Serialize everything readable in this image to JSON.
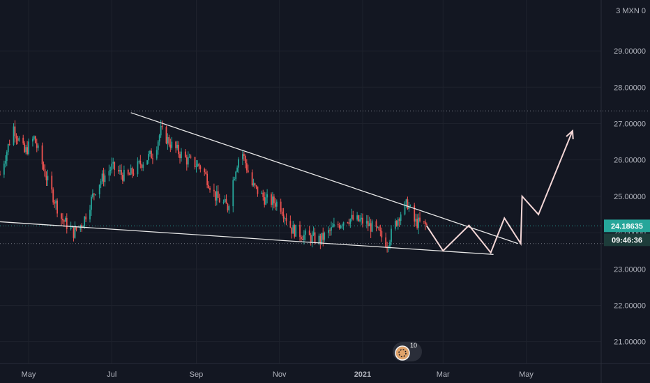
{
  "header": {
    "currency_label": "3 MXN 0"
  },
  "price_badge": {
    "value": "24.18635",
    "color": "#26a69a"
  },
  "countdown_badge": {
    "value": "09:46:36"
  },
  "logo": {
    "text": "10",
    "icon": "tv-logo-icon"
  },
  "colors": {
    "up": "#26a69a",
    "down": "#ef5350",
    "background": "#131722",
    "grid": "#1e222d",
    "trendline": "#e8e8e8",
    "projection": "#f3d6d6"
  },
  "chart_data": {
    "type": "candlestick",
    "title": "",
    "xlabel": "",
    "ylabel": "",
    "x_ticks": [
      "May",
      "Jul",
      "Sep",
      "Nov",
      "2021",
      "Mar",
      "May"
    ],
    "x_tick_dates": [
      "2020-05-01",
      "2020-07-01",
      "2020-09-01",
      "2020-11-01",
      "2021-01-01",
      "2021-03-01",
      "2021-05-01"
    ],
    "y_ticks": [
      21.0,
      22.0,
      23.0,
      24.0,
      25.0,
      26.0,
      27.0,
      28.0,
      29.0
    ],
    "y_tick_labels": [
      "21.00000",
      "22.00000",
      "23.00000",
      "24.00000",
      "25.00000",
      "26.00000",
      "27.00000",
      "28.00000",
      "29.00000"
    ],
    "ylim": [
      20.4,
      30.4
    ],
    "xlim": [
      "2020-04-10",
      "2021-06-25"
    ],
    "grid": true,
    "price_series": [
      {
        "date": "2020-04-10",
        "close": 25.6
      },
      {
        "date": "2020-04-20",
        "close": 26.9
      },
      {
        "date": "2020-04-28",
        "close": 26.2
      },
      {
        "date": "2020-05-05",
        "close": 26.6
      },
      {
        "date": "2020-05-15",
        "close": 25.4
      },
      {
        "date": "2020-05-25",
        "close": 24.4
      },
      {
        "date": "2020-06-03",
        "close": 24.0
      },
      {
        "date": "2020-06-10",
        "close": 24.3
      },
      {
        "date": "2020-06-20",
        "close": 25.3
      },
      {
        "date": "2020-07-01",
        "close": 25.8
      },
      {
        "date": "2020-07-12",
        "close": 25.5
      },
      {
        "date": "2020-07-22",
        "close": 25.9
      },
      {
        "date": "2020-08-01",
        "close": 26.2
      },
      {
        "date": "2020-08-06",
        "close": 26.8
      },
      {
        "date": "2020-08-14",
        "close": 26.4
      },
      {
        "date": "2020-08-25",
        "close": 26.0
      },
      {
        "date": "2020-09-05",
        "close": 25.8
      },
      {
        "date": "2020-09-15",
        "close": 25.0
      },
      {
        "date": "2020-09-24",
        "close": 24.7
      },
      {
        "date": "2020-09-30",
        "close": 25.8
      },
      {
        "date": "2020-10-04",
        "close": 26.3
      },
      {
        "date": "2020-10-12",
        "close": 25.3
      },
      {
        "date": "2020-10-22",
        "close": 24.9
      },
      {
        "date": "2020-11-01",
        "close": 24.8
      },
      {
        "date": "2020-11-10",
        "close": 24.1
      },
      {
        "date": "2020-11-20",
        "close": 23.9
      },
      {
        "date": "2020-12-01",
        "close": 23.8
      },
      {
        "date": "2020-12-10",
        "close": 24.1
      },
      {
        "date": "2020-12-20",
        "close": 24.4
      },
      {
        "date": "2021-01-01",
        "close": 24.3
      },
      {
        "date": "2021-01-10",
        "close": 24.1
      },
      {
        "date": "2021-01-19",
        "close": 23.7
      },
      {
        "date": "2021-01-28",
        "close": 24.5
      },
      {
        "date": "2021-02-03",
        "close": 24.8
      },
      {
        "date": "2021-02-08",
        "close": 24.3
      },
      {
        "date": "2021-02-17",
        "close": 24.18635
      }
    ],
    "upper_trendline": {
      "start": {
        "date": "2020-07-15",
        "value": 27.3
      },
      "end": {
        "date": "2021-04-25",
        "value": 23.7
      }
    },
    "lower_trendline": {
      "start": {
        "date": "2020-04-10",
        "value": 24.3
      },
      "end": {
        "date": "2021-04-07",
        "value": 23.4
      }
    },
    "projection_path": [
      {
        "date": "2021-02-17",
        "value": 24.18635
      },
      {
        "date": "2021-03-01",
        "value": 23.5
      },
      {
        "date": "2021-03-20",
        "value": 24.2
      },
      {
        "date": "2021-04-05",
        "value": 23.45
      },
      {
        "date": "2021-04-15",
        "value": 24.4
      },
      {
        "date": "2021-04-27",
        "value": 23.7
      },
      {
        "date": "2021-04-28",
        "value": 25.0
      },
      {
        "date": "2021-05-10",
        "value": 24.5
      },
      {
        "date": "2021-06-04",
        "value": 26.8
      }
    ],
    "dotted_levels": [
      27.35,
      23.7
    ],
    "current_price": 24.18635
  }
}
